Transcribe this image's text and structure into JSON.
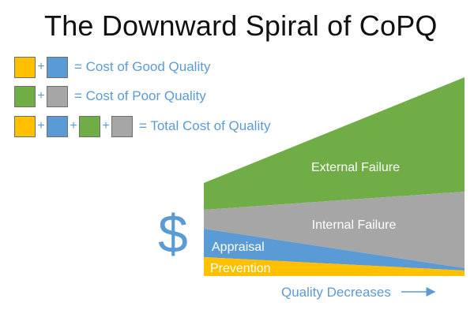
{
  "title": "The Downward Spiral of CoPQ",
  "colors": {
    "prevention": "#ffc000",
    "appraisal": "#5b9bd5",
    "internal_failure": "#a6a6a6",
    "external_failure": "#70ad47",
    "text_accent": "#5b9bd5"
  },
  "legend": {
    "row1": {
      "plus1": "+",
      "text": "=  Cost of Good Quality"
    },
    "row2": {
      "plus1": "+",
      "text": "=  Cost of Poor Quality"
    },
    "row3": {
      "plus1": "+",
      "plus2": "+",
      "plus3": "+",
      "text": "=  Total Cost of Quality"
    }
  },
  "chart": {
    "y_symbol": "$",
    "x_axis_label": "Quality Decreases",
    "layers": [
      "External Failure",
      "Internal Failure",
      "Appraisal",
      "Prevention"
    ]
  }
}
